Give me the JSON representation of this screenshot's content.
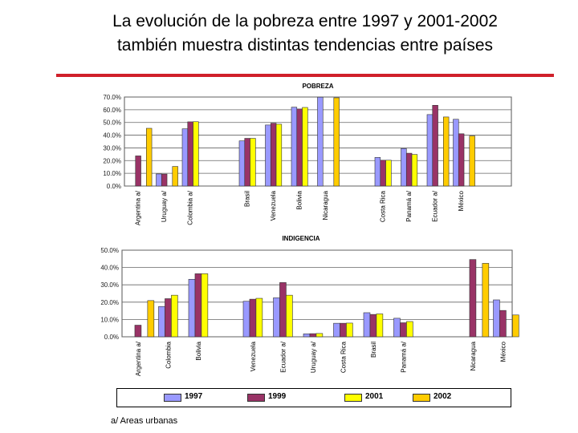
{
  "slide": {
    "title_line1": "La evolución de la pobreza entre 1997 y 2001-2002",
    "title_line2": "también muestra distintas tendencias entre países",
    "footnote": "a/ Areas urbanas",
    "accent_color": "#d0202a"
  },
  "colors": {
    "1997": "#9999ff",
    "1999": "#993366",
    "2001": "#ffff00",
    "2002": "#ffcc00"
  },
  "legend": [
    {
      "label": "1997",
      "color": "#9999ff"
    },
    {
      "label": "1999",
      "color": "#993366"
    },
    {
      "label": "2001",
      "color": "#ffff00"
    },
    {
      "label": "2002",
      "color": "#ffcc00"
    }
  ],
  "chart_data": [
    {
      "type": "bar",
      "title": "POBREZA",
      "ylim": [
        0,
        70
      ],
      "yticks": [
        "0.0%",
        "10.0%",
        "20.0%",
        "30.0%",
        "40.0%",
        "50.0%",
        "60.0%",
        "70.0%"
      ],
      "grid": true,
      "groups": [
        {
          "categories": [
            "Argentina a/",
            "Uruguay a/",
            "Colombia a/"
          ]
        },
        {
          "categories": [
            "Brasil",
            "Venezuela",
            "Bolivia",
            "Nicaragua"
          ]
        },
        {
          "categories": [
            "Costa Rica",
            "Panamá a/",
            "Ecuador a/",
            "México"
          ]
        }
      ],
      "categories": [
        "Argentina a/",
        "Uruguay a/",
        "Colombia a/",
        "Brasil",
        "Venezuela",
        "Bolivia",
        "Nicaragua",
        "Costa Rica",
        "Panamá a/",
        "Ecuador a/",
        "México"
      ],
      "series": [
        {
          "name": "1997",
          "values": [
            null,
            9.5,
            45,
            35.5,
            48,
            62,
            69.9,
            22.5,
            29.5,
            56.2,
            52.5
          ]
        },
        {
          "name": "1999",
          "values": [
            23.7,
            9.4,
            50.5,
            37.5,
            49.4,
            60.6,
            null,
            20.3,
            25.8,
            63.5,
            41.1
          ]
        },
        {
          "name": "2001",
          "values": [
            null,
            null,
            50.6,
            37.5,
            48.6,
            61.8,
            null,
            20.3,
            24.8,
            null,
            null
          ]
        },
        {
          "name": "2002",
          "values": [
            45.4,
            15.4,
            null,
            null,
            null,
            null,
            69.4,
            null,
            null,
            54.3,
            39.4
          ]
        }
      ]
    },
    {
      "type": "bar",
      "title": "INDIGENCIA",
      "ylim": [
        0,
        50
      ],
      "yticks": [
        "0.0%",
        "10.0%",
        "20.0%",
        "30.0%",
        "40.0%",
        "50.0%"
      ],
      "grid": true,
      "groups": [
        {
          "categories": [
            "Argentina a/",
            "Colombia",
            "Bolivia"
          ]
        },
        {
          "categories": [
            "Venezuela",
            "Ecuador a/",
            "Uruguay a/",
            "Costa Rica",
            "Brasil",
            "Panamá a/"
          ]
        },
        {
          "categories": [
            "Nicaragua",
            "México"
          ]
        }
      ],
      "categories": [
        "Argentina a/",
        "Colombia",
        "Bolivia",
        "Venezuela",
        "Ecuador a/",
        "Uruguay a/",
        "Costa Rica",
        "Brasil",
        "Panamá a/",
        "Nicaragua",
        "México"
      ],
      "series": [
        {
          "name": "1997",
          "values": [
            null,
            17.5,
            33.2,
            20.5,
            22.5,
            1.7,
            7.8,
            13.9,
            10.7,
            null,
            21.3
          ]
        },
        {
          "name": "1999",
          "values": [
            6.7,
            22,
            36.4,
            21.7,
            31.3,
            1.8,
            7.8,
            12.9,
            8.1,
            44.6,
            15.2
          ]
        },
        {
          "name": "2001",
          "values": [
            null,
            24,
            36.4,
            22.2,
            24,
            1.9,
            7.9,
            13.2,
            8.8,
            null,
            null
          ]
        },
        {
          "name": "2002",
          "values": [
            20.9,
            null,
            null,
            null,
            null,
            null,
            null,
            null,
            null,
            42.4,
            12.6
          ]
        }
      ]
    }
  ]
}
